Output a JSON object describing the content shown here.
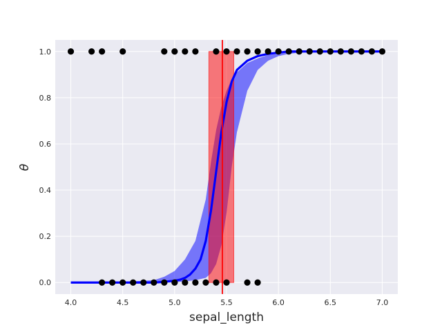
{
  "chart_data": {
    "type": "scatter",
    "title": "",
    "xlabel": "sepal_length",
    "ylabel": "θ",
    "xlim": [
      3.85,
      7.15
    ],
    "ylim": [
      -0.05,
      1.05
    ],
    "xticks": [
      "4.0",
      "4.5",
      "5.0",
      "5.5",
      "6.0",
      "6.5",
      "7.0"
    ],
    "xtick_values": [
      4.0,
      4.5,
      5.0,
      5.5,
      6.0,
      6.5,
      7.0
    ],
    "yticks": [
      "0.0",
      "0.2",
      "0.4",
      "0.6",
      "0.8",
      "1.0"
    ],
    "ytick_values": [
      0.0,
      0.2,
      0.4,
      0.6,
      0.8,
      1.0
    ],
    "grid": true,
    "style": {
      "background": "#EAEAF2",
      "grid": "#ffffff"
    },
    "points_y0": [
      4.3,
      4.4,
      4.5,
      4.6,
      4.7,
      4.8,
      4.9,
      5.0,
      5.1,
      5.2,
      5.3,
      5.4,
      5.5,
      5.7,
      5.8
    ],
    "points_y1": [
      4.0,
      4.2,
      4.3,
      4.5,
      4.9,
      5.0,
      5.1,
      5.2,
      5.4,
      5.5,
      5.6,
      5.7,
      5.8,
      5.9,
      6.0,
      6.1,
      6.2,
      6.3,
      6.4,
      6.5,
      6.6,
      6.7,
      6.8,
      6.9,
      7.0
    ],
    "points_color": "#000000",
    "mean_curve": {
      "color": "#0000ff",
      "x": [
        4.0,
        4.1,
        4.2,
        4.3,
        4.4,
        4.5,
        4.6,
        4.7,
        4.8,
        4.9,
        5.0,
        5.05,
        5.1,
        5.15,
        5.2,
        5.25,
        5.3,
        5.35,
        5.4,
        5.45,
        5.5,
        5.55,
        5.6,
        5.7,
        5.8,
        5.9,
        6.0,
        6.1,
        6.2,
        6.3,
        6.4,
        6.5,
        6.6,
        6.7,
        6.8,
        6.9,
        7.0
      ],
      "y": [
        0.0,
        0.0,
        0.0,
        0.0,
        0.0,
        0.0,
        0.0,
        0.0,
        0.0,
        0.003,
        0.008,
        0.012,
        0.02,
        0.035,
        0.06,
        0.1,
        0.18,
        0.31,
        0.48,
        0.65,
        0.78,
        0.87,
        0.92,
        0.96,
        0.98,
        0.99,
        0.995,
        1.0,
        1.0,
        1.0,
        1.0,
        1.0,
        1.0,
        1.0,
        1.0,
        1.0,
        1.0
      ]
    },
    "credible_band": {
      "color": "#0000ff",
      "opacity": 0.5,
      "x": [
        4.0,
        4.2,
        4.4,
        4.6,
        4.8,
        4.9,
        5.0,
        5.1,
        5.2,
        5.3,
        5.35,
        5.4,
        5.45,
        5.5,
        5.55,
        5.6,
        5.7,
        5.8,
        5.9,
        6.0,
        6.1,
        6.2,
        6.4,
        7.0
      ],
      "lower": [
        0.0,
        0.0,
        0.0,
        0.0,
        0.0,
        0.0,
        0.0,
        0.005,
        0.01,
        0.02,
        0.04,
        0.08,
        0.16,
        0.3,
        0.5,
        0.65,
        0.83,
        0.92,
        0.96,
        0.98,
        0.99,
        0.995,
        1.0,
        1.0
      ],
      "upper": [
        0.0,
        0.0,
        0.002,
        0.005,
        0.01,
        0.025,
        0.05,
        0.1,
        0.18,
        0.36,
        0.52,
        0.66,
        0.76,
        0.83,
        0.88,
        0.91,
        0.95,
        0.97,
        0.985,
        0.99,
        0.995,
        1.0,
        1.0,
        1.0
      ]
    },
    "boundary": {
      "value": 5.46,
      "line_color": "#ff0000",
      "hdi": [
        5.33,
        5.57
      ],
      "hdi_color": "#ff0000",
      "hdi_opacity": 0.5
    }
  }
}
